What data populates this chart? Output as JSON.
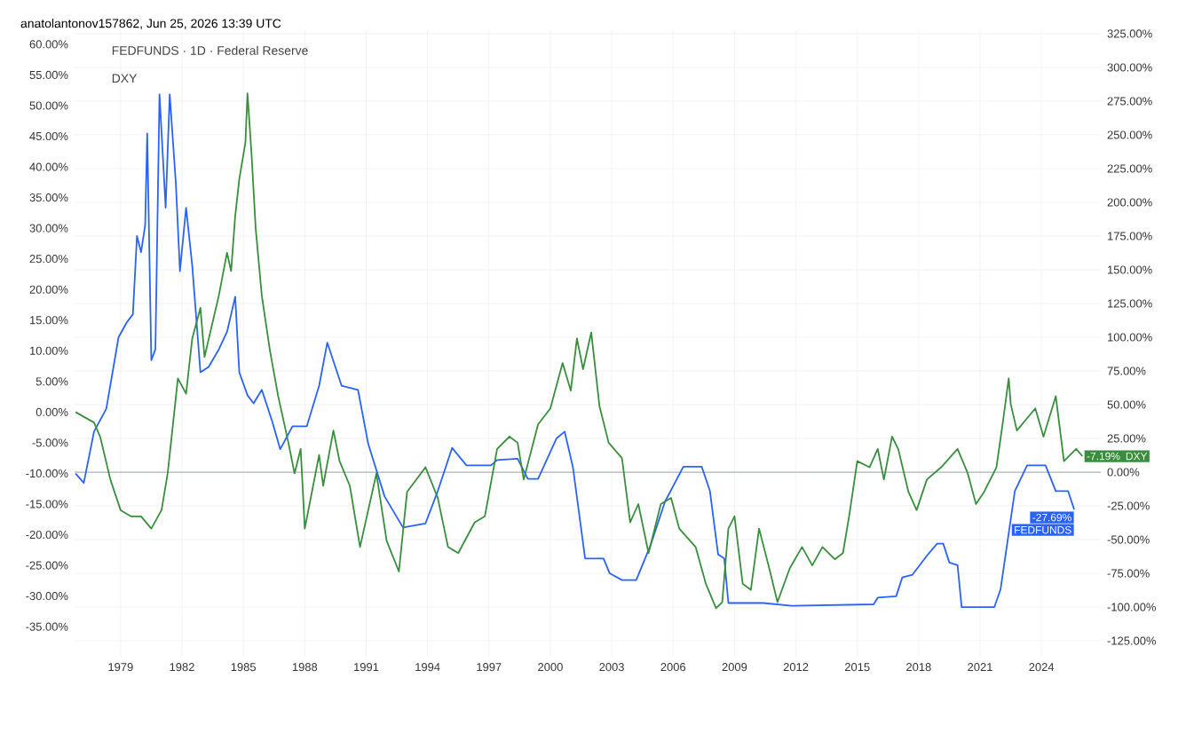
{
  "chart_data": {
    "type": "line",
    "title": "anatolantonov157862, Jun 25, 2026 13:39 UTC",
    "annotations": [
      "FEDFUNDS · 1D · Federal Reserve",
      "DXY"
    ],
    "xlim": [
      1976.75,
      2026.9
    ],
    "xticks": [
      1979,
      1982,
      1985,
      1988,
      1991,
      1994,
      1997,
      2000,
      2003,
      2006,
      2009,
      2012,
      2015,
      2018,
      2021,
      2024
    ],
    "ylim": [
      -39.9,
      62.3
    ],
    "yticks": [
      {
        "value": -35,
        "label": "-35.00%"
      },
      {
        "value": -30,
        "label": "-30.00%"
      },
      {
        "value": -25,
        "label": "-25.00%"
      },
      {
        "value": -20,
        "label": "-20.00%"
      },
      {
        "value": -15,
        "label": "-15.00%"
      },
      {
        "value": -10,
        "label": "-10.00%"
      },
      {
        "value": -5,
        "label": "-5.00%"
      },
      {
        "value": 0,
        "label": "0.00%"
      },
      {
        "value": 5,
        "label": "5.00%"
      },
      {
        "value": 10,
        "label": "10.00%"
      },
      {
        "value": 15,
        "label": "15.00%"
      },
      {
        "value": 20,
        "label": "20.00%"
      },
      {
        "value": 25,
        "label": "25.00%"
      },
      {
        "value": 30,
        "label": "30.00%"
      },
      {
        "value": 35,
        "label": "35.00%"
      },
      {
        "value": 40,
        "label": "40.00%"
      },
      {
        "value": 45,
        "label": "45.00%"
      },
      {
        "value": 50,
        "label": "50.00%"
      },
      {
        "value": 55,
        "label": "55.00%"
      },
      {
        "value": 60,
        "label": "60.00%"
      }
    ],
    "y2lim": [
      -136.8,
      327.6
    ],
    "y2ticks": [
      {
        "value": -125,
        "label": "-125.00%"
      },
      {
        "value": -100,
        "label": "-100.00%"
      },
      {
        "value": -75,
        "label": "-75.00%"
      },
      {
        "value": -50,
        "label": "-50.00%"
      },
      {
        "value": -25,
        "label": "-25.00%"
      },
      {
        "value": 0,
        "label": "0.00%"
      },
      {
        "value": 25,
        "label": "25.00%"
      },
      {
        "value": 50,
        "label": "50.00%"
      },
      {
        "value": 75,
        "label": "75.00%"
      },
      {
        "value": 100,
        "label": "100.00%"
      },
      {
        "value": 125,
        "label": "125.00%"
      },
      {
        "value": 150,
        "label": "150.00%"
      },
      {
        "value": 175,
        "label": "175.00%"
      },
      {
        "value": 200,
        "label": "200.00%"
      },
      {
        "value": 225,
        "label": "225.00%"
      },
      {
        "value": 250,
        "label": "250.00%"
      },
      {
        "value": 275,
        "label": "275.00%"
      },
      {
        "value": 300,
        "label": "300.00%"
      },
      {
        "value": 325,
        "label": "325.00%"
      }
    ],
    "grid": true,
    "ref_lines": [
      {
        "axis": "y2",
        "value": 0,
        "color": "#b2b5be"
      }
    ],
    "series": [
      {
        "name": "FEDFUNDS",
        "axis": "y2",
        "color": "#2962ff",
        "x": [
          1976.8,
          1977.2,
          1977.7,
          1978.3,
          1978.9,
          1979.3,
          1979.6,
          1979.8,
          1980.0,
          1980.2,
          1980.3,
          1980.5,
          1980.7,
          1980.9,
          1981.2,
          1981.4,
          1981.7,
          1981.9,
          1982.2,
          1982.5,
          1982.9,
          1983.3,
          1983.8,
          1984.2,
          1984.6,
          1984.8,
          1985.2,
          1985.5,
          1985.9,
          1986.4,
          1986.8,
          1987.4,
          1988.1,
          1988.7,
          1989.1,
          1989.8,
          1990.6,
          1991.1,
          1991.9,
          1992.8,
          1993.9,
          1994.5,
          1995.2,
          1995.9,
          1997.1,
          1997.4,
          1998.4,
          1998.9,
          1999.4,
          2000.3,
          2000.7,
          2001.1,
          2001.7,
          2002.6,
          2002.9,
          2003.5,
          2004.2,
          2004.9,
          2005.6,
          2006.5,
          2007.4,
          2007.8,
          2008.2,
          2008.5,
          2008.7,
          2010.4,
          2011.8,
          2015.8,
          2016.0,
          2016.9,
          2017.2,
          2017.7,
          2018.4,
          2018.9,
          2019.2,
          2019.5,
          2019.9,
          2020.1,
          2021.7,
          2022.0,
          2022.7,
          2023.3,
          2024.2,
          2024.7,
          2025.3,
          2025.6
        ],
        "values": [
          -1,
          -8,
          30,
          47,
          100,
          111,
          117,
          175,
          163,
          183,
          251,
          83,
          91,
          280,
          196,
          280,
          214,
          149,
          196,
          153,
          74,
          78,
          91,
          104,
          130,
          74,
          57,
          51,
          61,
          38,
          17,
          34,
          34,
          64,
          96,
          64,
          61,
          21,
          -18,
          -41,
          -38,
          -14,
          18,
          5,
          5,
          9,
          10,
          -5,
          -5,
          25,
          30,
          4,
          -64,
          -64,
          -75,
          -80,
          -80,
          -54,
          -22,
          4,
          4,
          -14,
          -61,
          -64,
          -97,
          -97,
          -99,
          -98,
          -93,
          -92,
          -78,
          -76,
          -62,
          -53,
          -53,
          -67,
          -69,
          -100,
          -100,
          -87,
          -14,
          5,
          5,
          -14,
          -14,
          -27.69
        ],
        "value_labels": [
          null,
          null,
          null,
          null,
          null,
          null,
          null,
          null,
          null,
          null,
          null,
          null,
          null,
          null,
          null,
          null,
          null,
          null,
          null,
          null,
          null,
          null,
          null,
          null,
          null,
          null,
          null,
          null,
          null,
          null,
          null,
          null,
          null,
          null,
          null,
          null,
          null,
          null,
          null,
          null,
          null,
          null,
          null,
          null,
          null,
          null,
          null,
          null,
          null,
          null,
          null,
          null,
          null,
          null,
          null,
          null,
          null,
          null,
          null,
          null,
          null,
          null,
          null,
          null,
          null,
          null,
          null,
          null,
          null,
          null,
          null,
          null,
          null,
          null,
          null,
          null,
          null,
          null,
          null,
          null,
          null,
          null,
          null,
          null,
          null,
          "-27.69%"
        ]
      },
      {
        "name": "DXY",
        "axis": "y",
        "color": "#388e3c",
        "x": [
          1976.8,
          1977.7,
          1978.0,
          1978.5,
          1979.0,
          1979.5,
          1980.0,
          1980.5,
          1981.0,
          1981.3,
          1981.8,
          1982.2,
          1982.5,
          1982.9,
          1983.1,
          1983.8,
          1984.2,
          1984.4,
          1984.6,
          1984.8,
          1985.1,
          1985.2,
          1985.4,
          1985.6,
          1985.9,
          1986.3,
          1986.7,
          1987.2,
          1987.5,
          1987.8,
          1988.0,
          1988.7,
          1988.9,
          1989.4,
          1989.7,
          1990.2,
          1990.7,
          1991.1,
          1991.5,
          1992.0,
          1992.6,
          1993.0,
          1993.9,
          1994.5,
          1995.0,
          1995.5,
          1996.3,
          1996.8,
          1997.4,
          1998.0,
          1998.4,
          1998.7,
          1999.4,
          2000.0,
          2000.6,
          2001.0,
          2001.3,
          2001.6,
          2002.0,
          2002.4,
          2002.85,
          2003.5,
          2003.9,
          2004.3,
          2004.8,
          2005.4,
          2005.9,
          2006.3,
          2007.1,
          2007.6,
          2008.1,
          2008.4,
          2008.7,
          2009.0,
          2009.4,
          2009.8,
          2010.2,
          2010.7,
          2011.1,
          2011.7,
          2012.3,
          2012.8,
          2013.3,
          2013.9,
          2014.3,
          2014.6,
          2015.0,
          2015.6,
          2016.0,
          2016.3,
          2016.7,
          2017.0,
          2017.5,
          2017.9,
          2018.4,
          2019.1,
          2019.9,
          2020.4,
          2020.8,
          2021.2,
          2021.8,
          2022.1,
          2022.4,
          2022.5,
          2022.8,
          2023.3,
          2023.7,
          2024.1,
          2024.7,
          2025.1,
          2025.7,
          2026.0
        ],
        "values": [
          0,
          -1.7,
          -4,
          -11,
          -16,
          -17,
          -17,
          -19,
          -16,
          -10,
          5.5,
          3,
          12,
          17,
          9,
          19,
          26,
          23,
          32,
          38,
          44,
          52,
          42,
          30,
          19,
          10,
          2.6,
          -5,
          -10,
          -6,
          -19,
          -7,
          -12,
          -3,
          -8,
          -12,
          -22,
          -16,
          -10,
          -21,
          -26,
          -13,
          -9,
          -14,
          -22,
          -23,
          -18,
          -17,
          -6,
          -4,
          -5,
          -11,
          -2,
          0.6,
          8,
          3.5,
          12,
          7,
          13,
          1,
          -5,
          -7.5,
          -18,
          -15,
          -23,
          -15,
          -14,
          -19,
          -22,
          -28,
          -32,
          -31,
          -19,
          -17,
          -28,
          -29,
          -19,
          -25.5,
          -31,
          -25.5,
          -22,
          -25,
          -22,
          -24,
          -23,
          -17,
          -8,
          -9,
          -6,
          -11,
          -4,
          -6,
          -13,
          -16,
          -11,
          -9,
          -6,
          -10,
          -15,
          -13,
          -9,
          -2,
          5.5,
          1.3,
          -3,
          -1,
          0.6,
          -4,
          2.6,
          -8,
          -6,
          -7.19
        ],
        "value_labels": [
          null,
          null,
          null,
          null,
          null,
          null,
          null,
          null,
          null,
          null,
          null,
          null,
          null,
          null,
          null,
          null,
          null,
          null,
          null,
          null,
          null,
          null,
          null,
          null,
          null,
          null,
          null,
          null,
          null,
          null,
          null,
          null,
          null,
          null,
          null,
          null,
          null,
          null,
          null,
          null,
          null,
          null,
          null,
          null,
          null,
          null,
          null,
          null,
          null,
          null,
          null,
          null,
          null,
          null,
          null,
          null,
          null,
          null,
          null,
          null,
          null,
          null,
          null,
          null,
          null,
          null,
          null,
          null,
          null,
          null,
          null,
          null,
          null,
          null,
          null,
          null,
          null,
          null,
          null,
          null,
          null,
          null,
          null,
          null,
          null,
          null,
          null,
          null,
          null,
          null,
          null,
          null,
          null,
          null,
          null,
          null,
          null,
          null,
          null,
          null,
          null,
          null,
          null,
          null,
          null,
          null,
          null,
          null,
          null,
          null,
          null,
          "-7.19%"
        ]
      }
    ]
  }
}
